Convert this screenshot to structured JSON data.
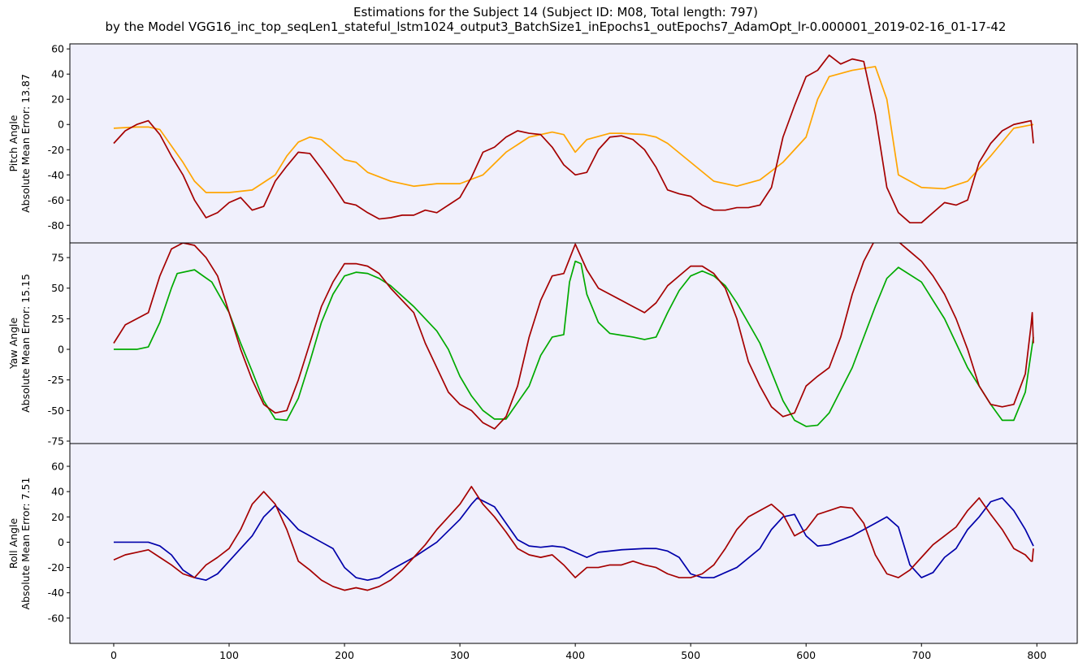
{
  "figure": {
    "title_line1": "Estimations for the Subject 14 (Subject ID: M08, Total length: 797)",
    "title_line2": "by the Model VGG16_inc_top_seqLen1_stateful_lstm1024_output3_BatchSize1_inEpochs1_outEpochs7_AdamOpt_lr-0.000001_2019-02-16_01-17-42"
  },
  "colors": {
    "background": "#f0f0fc",
    "ground_truth": "#a50000",
    "pitch_estimate": "#ffa500",
    "yaw_estimate": "#00aa00",
    "roll_estimate": "#0000aa"
  },
  "chart_data": [
    {
      "type": "line",
      "panel": "pitch",
      "ylabel_line1": "Pitch Angle",
      "ylabel_line2": "Absolute Mean Error: 13.87",
      "xlim": [
        -38,
        835
      ],
      "ylim": [
        -94,
        64
      ],
      "yticks": [
        60,
        40,
        20,
        0,
        -20,
        -40,
        -60,
        -80
      ],
      "xticks": [],
      "series": [
        {
          "role": "estimate",
          "x": [
            0,
            20,
            30,
            40,
            60,
            70,
            80,
            100,
            120,
            140,
            150,
            160,
            170,
            180,
            190,
            200,
            210,
            220,
            240,
            260,
            280,
            300,
            320,
            340,
            360,
            380,
            390,
            400,
            410,
            430,
            440,
            460,
            470,
            480,
            500,
            520,
            540,
            560,
            580,
            600,
            610,
            620,
            640,
            660,
            670,
            680,
            700,
            720,
            740,
            760,
            780,
            797
          ],
          "y": [
            -3,
            -2,
            -2,
            -4,
            -30,
            -45,
            -54,
            -54,
            -52,
            -40,
            -25,
            -14,
            -10,
            -12,
            -20,
            -28,
            -30,
            -38,
            -45,
            -49,
            -47,
            -47,
            -40,
            -22,
            -10,
            -6,
            -8,
            -22,
            -12,
            -7,
            -7,
            -8,
            -10,
            -15,
            -30,
            -45,
            -49,
            -44,
            -30,
            -10,
            20,
            38,
            43,
            46,
            20,
            -40,
            -50,
            -51,
            -45,
            -25,
            -3,
            0
          ]
        },
        {
          "role": "ground_truth",
          "x": [
            0,
            10,
            20,
            30,
            40,
            50,
            60,
            70,
            80,
            90,
            100,
            110,
            120,
            130,
            140,
            150,
            160,
            170,
            180,
            190,
            200,
            210,
            220,
            230,
            240,
            250,
            260,
            270,
            280,
            290,
            300,
            310,
            320,
            330,
            340,
            350,
            360,
            370,
            380,
            390,
            400,
            410,
            420,
            430,
            440,
            450,
            460,
            470,
            480,
            490,
            500,
            510,
            520,
            530,
            540,
            550,
            560,
            570,
            580,
            590,
            600,
            610,
            620,
            630,
            640,
            650,
            660,
            670,
            680,
            690,
            700,
            710,
            720,
            730,
            740,
            750,
            760,
            770,
            780,
            790,
            795,
            796,
            797
          ],
          "y": [
            -15,
            -5,
            0,
            3,
            -8,
            -25,
            -40,
            -60,
            -74,
            -70,
            -62,
            -58,
            -68,
            -65,
            -45,
            -33,
            -22,
            -23,
            -35,
            -48,
            -62,
            -64,
            -70,
            -75,
            -74,
            -72,
            -72,
            -68,
            -70,
            -64,
            -58,
            -42,
            -22,
            -18,
            -10,
            -5,
            -7,
            -8,
            -18,
            -32,
            -40,
            -38,
            -20,
            -10,
            -9,
            -12,
            -20,
            -34,
            -52,
            -55,
            -57,
            -64,
            -68,
            -68,
            -66,
            -66,
            -64,
            -50,
            -10,
            15,
            38,
            43,
            55,
            48,
            52,
            50,
            8,
            -50,
            -70,
            -78,
            -78,
            -70,
            -62,
            -64,
            -60,
            -30,
            -15,
            -5,
            0,
            2,
            3,
            -5,
            -15
          ]
        }
      ]
    },
    {
      "type": "line",
      "panel": "yaw",
      "ylabel_line1": "Yaw Angle",
      "ylabel_line2": "Absolute Mean Error: 15.15",
      "xlim": [
        -38,
        835
      ],
      "ylim": [
        -77,
        87
      ],
      "yticks": [
        75,
        50,
        25,
        0,
        -25,
        -50,
        -75
      ],
      "xticks": [],
      "series": [
        {
          "role": "estimate",
          "x": [
            0,
            20,
            30,
            40,
            50,
            55,
            70,
            85,
            100,
            110,
            120,
            130,
            140,
            150,
            160,
            170,
            180,
            190,
            200,
            210,
            220,
            230,
            240,
            260,
            280,
            290,
            300,
            310,
            320,
            330,
            340,
            360,
            370,
            380,
            390,
            395,
            400,
            405,
            410,
            420,
            430,
            450,
            460,
            470,
            480,
            490,
            500,
            510,
            520,
            530,
            540,
            560,
            580,
            590,
            600,
            610,
            620,
            640,
            660,
            670,
            680,
            700,
            720,
            740,
            760,
            770,
            780,
            790,
            797
          ],
          "y": [
            0,
            0,
            2,
            22,
            50,
            62,
            65,
            55,
            30,
            5,
            -18,
            -42,
            -57,
            -58,
            -40,
            -10,
            22,
            45,
            60,
            63,
            62,
            58,
            52,
            35,
            15,
            0,
            -22,
            -38,
            -50,
            -57,
            -57,
            -30,
            -5,
            10,
            12,
            55,
            72,
            70,
            45,
            22,
            13,
            10,
            8,
            10,
            30,
            48,
            60,
            64,
            60,
            52,
            38,
            5,
            -42,
            -58,
            -63,
            -62,
            -52,
            -15,
            35,
            58,
            67,
            55,
            25,
            -15,
            -45,
            -58,
            -58,
            -35,
            10
          ]
        },
        {
          "role": "ground_truth",
          "x": [
            0,
            10,
            20,
            30,
            40,
            50,
            60,
            70,
            80,
            90,
            100,
            110,
            120,
            130,
            140,
            150,
            160,
            170,
            180,
            190,
            200,
            210,
            220,
            230,
            240,
            250,
            260,
            270,
            280,
            290,
            300,
            310,
            320,
            330,
            340,
            350,
            360,
            370,
            380,
            390,
            400,
            410,
            420,
            430,
            440,
            450,
            460,
            470,
            480,
            490,
            500,
            510,
            520,
            530,
            540,
            550,
            560,
            570,
            580,
            590,
            600,
            610,
            620,
            630,
            640,
            650,
            660,
            670,
            680,
            690,
            700,
            710,
            720,
            730,
            740,
            750,
            760,
            770,
            780,
            790,
            795,
            796,
            797
          ],
          "y": [
            5,
            20,
            25,
            30,
            60,
            82,
            87,
            85,
            75,
            60,
            30,
            0,
            -25,
            -45,
            -52,
            -50,
            -25,
            5,
            35,
            55,
            70,
            70,
            68,
            62,
            50,
            40,
            30,
            5,
            -15,
            -35,
            -45,
            -50,
            -60,
            -65,
            -55,
            -30,
            10,
            40,
            60,
            62,
            86,
            65,
            50,
            45,
            40,
            35,
            30,
            38,
            52,
            60,
            68,
            68,
            62,
            50,
            25,
            -10,
            -30,
            -47,
            -55,
            -52,
            -30,
            -22,
            -15,
            10,
            45,
            72,
            90,
            92,
            88,
            80,
            72,
            60,
            45,
            25,
            0,
            -30,
            -45,
            -47,
            -45,
            -20,
            20,
            30,
            5
          ]
        }
      ]
    },
    {
      "type": "line",
      "panel": "roll",
      "ylabel_line1": "Roll Angle",
      "ylabel_line2": "Absolute Mean Error: 7.51",
      "xlim": [
        -38,
        835
      ],
      "ylim": [
        -80,
        78
      ],
      "yticks": [
        60,
        40,
        20,
        0,
        -20,
        -40,
        -60
      ],
      "xticks": [
        0,
        100,
        200,
        300,
        400,
        500,
        600,
        700,
        800
      ],
      "series": [
        {
          "role": "estimate",
          "x": [
            0,
            20,
            30,
            40,
            50,
            60,
            70,
            80,
            90,
            100,
            110,
            120,
            130,
            140,
            150,
            160,
            170,
            180,
            190,
            200,
            210,
            220,
            230,
            240,
            260,
            280,
            300,
            310,
            315,
            330,
            340,
            350,
            360,
            370,
            380,
            390,
            400,
            410,
            420,
            440,
            460,
            470,
            480,
            490,
            500,
            510,
            520,
            540,
            560,
            570,
            580,
            590,
            600,
            610,
            620,
            640,
            660,
            670,
            680,
            690,
            700,
            710,
            720,
            730,
            740,
            750,
            760,
            770,
            780,
            790,
            797
          ],
          "y": [
            0,
            0,
            0,
            -3,
            -10,
            -22,
            -28,
            -30,
            -25,
            -15,
            -5,
            5,
            20,
            29,
            20,
            10,
            5,
            0,
            -5,
            -20,
            -28,
            -30,
            -28,
            -22,
            -12,
            0,
            18,
            30,
            35,
            28,
            15,
            2,
            -3,
            -4,
            -3,
            -4,
            -8,
            -12,
            -8,
            -6,
            -5,
            -5,
            -7,
            -12,
            -25,
            -28,
            -28,
            -20,
            -5,
            10,
            20,
            22,
            5,
            -3,
            -2,
            5,
            15,
            20,
            12,
            -18,
            -28,
            -24,
            -12,
            -5,
            10,
            20,
            32,
            35,
            25,
            10,
            -3
          ]
        },
        {
          "role": "ground_truth",
          "x": [
            0,
            10,
            20,
            30,
            40,
            50,
            60,
            70,
            80,
            90,
            100,
            110,
            120,
            130,
            140,
            150,
            160,
            170,
            180,
            190,
            200,
            210,
            220,
            230,
            240,
            250,
            260,
            270,
            280,
            290,
            300,
            310,
            320,
            330,
            340,
            350,
            360,
            370,
            380,
            390,
            400,
            410,
            420,
            430,
            440,
            450,
            460,
            470,
            480,
            490,
            500,
            510,
            520,
            530,
            540,
            550,
            560,
            570,
            580,
            590,
            600,
            610,
            620,
            630,
            640,
            650,
            660,
            670,
            680,
            690,
            700,
            710,
            720,
            730,
            740,
            750,
            760,
            770,
            780,
            790,
            795,
            796,
            797
          ],
          "y": [
            -14,
            -10,
            -8,
            -6,
            -12,
            -18,
            -25,
            -28,
            -18,
            -12,
            -5,
            10,
            30,
            40,
            30,
            10,
            -15,
            -22,
            -30,
            -35,
            -38,
            -36,
            -38,
            -35,
            -30,
            -22,
            -12,
            -2,
            10,
            20,
            30,
            44,
            30,
            20,
            8,
            -5,
            -10,
            -12,
            -10,
            -18,
            -28,
            -20,
            -20,
            -18,
            -18,
            -15,
            -18,
            -20,
            -25,
            -28,
            -28,
            -25,
            -18,
            -5,
            10,
            20,
            25,
            30,
            22,
            5,
            10,
            22,
            25,
            28,
            27,
            15,
            -10,
            -25,
            -28,
            -22,
            -12,
            -2,
            5,
            12,
            25,
            35,
            22,
            10,
            -5,
            -10,
            -15,
            -15,
            -5
          ]
        }
      ]
    }
  ]
}
